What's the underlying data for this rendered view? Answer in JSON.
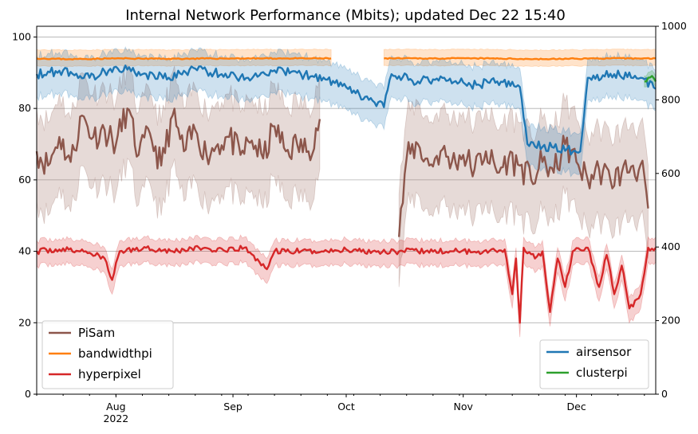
{
  "chart_data": {
    "type": "line",
    "title": "Internal Network Performance (Mbits); updated Dec 22 15:40",
    "x_axis": {
      "type": "date",
      "range": [
        "2022-07-11",
        "2022-12-22"
      ],
      "ticks": [
        {
          "date": "2022-08-01",
          "label": "Aug",
          "sublabel": "2022"
        },
        {
          "date": "2022-09-01",
          "label": "Sep",
          "sublabel": ""
        },
        {
          "date": "2022-10-01",
          "label": "Oct",
          "sublabel": ""
        },
        {
          "date": "2022-11-01",
          "label": "Nov",
          "sublabel": ""
        },
        {
          "date": "2022-12-01",
          "label": "Dec",
          "sublabel": ""
        }
      ]
    },
    "y_left": {
      "range": [
        0,
        103
      ],
      "ticks": [
        "0",
        "20",
        "40",
        "60",
        "80",
        "100"
      ],
      "grid": true
    },
    "y_right": {
      "range": [
        0,
        1000
      ],
      "ticks": [
        "0",
        "200",
        "400",
        "600",
        "800",
        "1000"
      ]
    },
    "series": [
      {
        "name": "PiSam",
        "axis": "left",
        "color": "#8c564b",
        "band": true,
        "points": [
          [
            "2022-07-11",
            68
          ],
          [
            "2022-07-14",
            64
          ],
          [
            "2022-07-17",
            72
          ],
          [
            "2022-07-20",
            65
          ],
          [
            "2022-07-23",
            78
          ],
          [
            "2022-07-26",
            72
          ],
          [
            "2022-07-29",
            74
          ],
          [
            "2022-08-01",
            70
          ],
          [
            "2022-08-04",
            80
          ],
          [
            "2022-08-07",
            67
          ],
          [
            "2022-08-10",
            73
          ],
          [
            "2022-08-13",
            64
          ],
          [
            "2022-08-16",
            78
          ],
          [
            "2022-08-19",
            68
          ],
          [
            "2022-08-22",
            74
          ],
          [
            "2022-08-25",
            67
          ],
          [
            "2022-08-28",
            70
          ],
          [
            "2022-08-31",
            72
          ],
          [
            "2022-09-03",
            67
          ],
          [
            "2022-09-06",
            71
          ],
          [
            "2022-09-09",
            66
          ],
          [
            "2022-09-12",
            75
          ],
          [
            "2022-09-15",
            68
          ],
          [
            "2022-09-18",
            70
          ],
          [
            "2022-09-21",
            68
          ],
          [
            "2022-09-24",
            77
          ],
          null,
          [
            "2022-10-15",
            44
          ],
          [
            "2022-10-17",
            66
          ],
          [
            "2022-10-20",
            70
          ],
          [
            "2022-10-23",
            64
          ],
          [
            "2022-10-26",
            68
          ],
          [
            "2022-10-29",
            65
          ],
          [
            "2022-11-01",
            67
          ],
          [
            "2022-11-04",
            63
          ],
          [
            "2022-11-07",
            68
          ],
          [
            "2022-11-10",
            62
          ],
          [
            "2022-11-13",
            66
          ],
          [
            "2022-11-16",
            64
          ],
          [
            "2022-11-19",
            60
          ],
          [
            "2022-11-22",
            65
          ],
          [
            "2022-11-25",
            62
          ],
          [
            "2022-11-28",
            70
          ],
          [
            "2022-12-01",
            65
          ],
          [
            "2022-12-04",
            60
          ],
          [
            "2022-12-07",
            63
          ],
          [
            "2022-12-10",
            60
          ],
          [
            "2022-12-13",
            62
          ],
          [
            "2022-12-16",
            64
          ],
          [
            "2022-12-19",
            61
          ],
          [
            "2022-12-20",
            52
          ]
        ]
      },
      {
        "name": "bandwidthpi",
        "axis": "left",
        "color": "#ff7f0e",
        "band": true,
        "points": [
          [
            "2022-07-11",
            94
          ],
          [
            "2022-07-20",
            93.8
          ],
          [
            "2022-08-01",
            94
          ],
          [
            "2022-08-15",
            93.9
          ],
          [
            "2022-09-01",
            94
          ],
          [
            "2022-09-15",
            94
          ],
          [
            "2022-09-27",
            94
          ],
          null,
          [
            "2022-10-11",
            94
          ],
          [
            "2022-10-25",
            94
          ],
          [
            "2022-11-08",
            94
          ],
          [
            "2022-11-22",
            93.8
          ],
          [
            "2022-12-06",
            94
          ],
          [
            "2022-12-22",
            94
          ]
        ]
      },
      {
        "name": "hyperpixel",
        "axis": "left",
        "color": "#d62728",
        "band": true,
        "points": [
          [
            "2022-07-11",
            40
          ],
          [
            "2022-07-17",
            40.5
          ],
          [
            "2022-07-24",
            40
          ],
          [
            "2022-07-29",
            38
          ],
          [
            "2022-07-31",
            32
          ],
          [
            "2022-08-02",
            40
          ],
          [
            "2022-08-09",
            41
          ],
          [
            "2022-08-16",
            40
          ],
          [
            "2022-08-23",
            41
          ],
          [
            "2022-08-30",
            40
          ],
          [
            "2022-09-04",
            41
          ],
          [
            "2022-09-08",
            37
          ],
          [
            "2022-09-10",
            35
          ],
          [
            "2022-09-12",
            40
          ],
          [
            "2022-09-19",
            40
          ],
          [
            "2022-09-26",
            40
          ],
          [
            "2022-10-01",
            40.5
          ],
          [
            "2022-10-08",
            40
          ],
          [
            "2022-10-15",
            40
          ],
          [
            "2022-10-22",
            40
          ],
          [
            "2022-10-29",
            40
          ],
          [
            "2022-11-05",
            40
          ],
          [
            "2022-11-12",
            40.5
          ],
          [
            "2022-11-14",
            28
          ],
          [
            "2022-11-15",
            38
          ],
          [
            "2022-11-16",
            20
          ],
          [
            "2022-11-17",
            41
          ],
          [
            "2022-11-20",
            38
          ],
          [
            "2022-11-22",
            40
          ],
          [
            "2022-11-24",
            23
          ],
          [
            "2022-11-26",
            38
          ],
          [
            "2022-11-28",
            30
          ],
          [
            "2022-11-30",
            40
          ],
          [
            "2022-12-04",
            41
          ],
          [
            "2022-12-07",
            30
          ],
          [
            "2022-12-09",
            39
          ],
          [
            "2022-12-11",
            28
          ],
          [
            "2022-12-13",
            36
          ],
          [
            "2022-12-15",
            24
          ],
          [
            "2022-12-18",
            28
          ],
          [
            "2022-12-20",
            41
          ],
          [
            "2022-12-22",
            41
          ]
        ]
      },
      {
        "name": "airsensor",
        "axis": "right",
        "color": "#1f77b4",
        "band": true,
        "points": [
          [
            "2022-07-11",
            870
          ],
          [
            "2022-07-18",
            880
          ],
          [
            "2022-07-25",
            860
          ],
          [
            "2022-08-01",
            890
          ],
          [
            "2022-08-08",
            870
          ],
          [
            "2022-08-15",
            860
          ],
          [
            "2022-08-22",
            885
          ],
          [
            "2022-08-29",
            870
          ],
          [
            "2022-09-05",
            860
          ],
          [
            "2022-09-12",
            880
          ],
          [
            "2022-09-19",
            870
          ],
          [
            "2022-09-26",
            855
          ],
          [
            "2022-10-11",
            780
          ],
          [
            "2022-10-13",
            870
          ],
          [
            "2022-10-20",
            850
          ],
          [
            "2022-10-27",
            860
          ],
          [
            "2022-11-03",
            840
          ],
          [
            "2022-11-10",
            850
          ],
          [
            "2022-11-16",
            835
          ],
          [
            "2022-11-18",
            680
          ],
          [
            "2022-11-25",
            670
          ],
          [
            "2022-12-02",
            660
          ],
          [
            "2022-12-04",
            860
          ],
          [
            "2022-12-11",
            870
          ],
          [
            "2022-12-18",
            860
          ],
          [
            "2022-12-22",
            830
          ]
        ]
      },
      {
        "name": "clusterpi",
        "axis": "right",
        "color": "#2ca02c",
        "band": true,
        "points": [
          [
            "2022-12-19",
            850
          ],
          [
            "2022-12-20",
            860
          ],
          [
            "2022-12-21",
            865
          ],
          [
            "2022-12-22",
            850
          ]
        ]
      }
    ],
    "legends": [
      {
        "position": "lower-left",
        "entries": [
          "PiSam",
          "bandwidthpi",
          "hyperpixel"
        ]
      },
      {
        "position": "lower-right",
        "entries": [
          "airsensor",
          "clusterpi"
        ]
      }
    ]
  }
}
